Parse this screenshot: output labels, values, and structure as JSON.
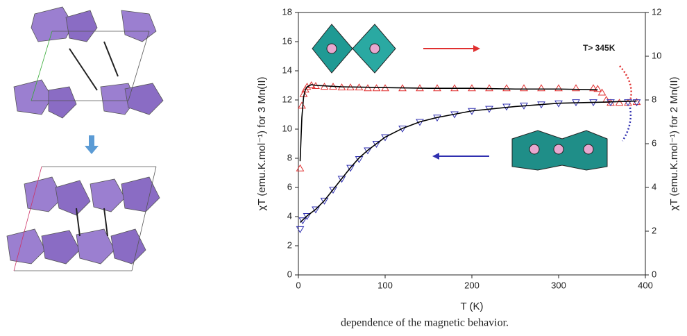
{
  "chart_data": {
    "type": "line",
    "x_label": "T (K)",
    "y_label": "χT (emu.K.mol⁻¹) for 3 Mn(II)",
    "y2_label": "χT (emu.K.mol⁻¹) for 2 Mn(II)",
    "annotation": "T> 345K",
    "caption": "dependence of the magnetic behavior.",
    "xlim": [
      0,
      400
    ],
    "xticks": [
      0,
      100,
      200,
      300,
      400
    ],
    "ylim": [
      0,
      18
    ],
    "yticks": [
      0,
      2,
      4,
      6,
      8,
      10,
      12,
      14,
      16,
      18
    ],
    "y2lim": [
      0,
      12
    ],
    "y2ticks": [
      0,
      2,
      4,
      6,
      8,
      10,
      12
    ],
    "series": [
      {
        "color": "#e03030",
        "marker": "triangle-up",
        "axis": "y",
        "x": [
          2,
          4,
          6,
          8,
          10,
          15,
          20,
          30,
          40,
          50,
          60,
          70,
          80,
          90,
          100,
          120,
          140,
          160,
          180,
          200,
          220,
          240,
          260,
          280,
          300,
          320,
          340,
          345,
          350,
          355,
          360,
          370,
          380,
          390
        ],
        "values": [
          7.3,
          11.6,
          12.4,
          12.7,
          12.9,
          13.0,
          12.95,
          12.9,
          12.9,
          12.85,
          12.85,
          12.85,
          12.8,
          12.8,
          12.8,
          12.8,
          12.8,
          12.8,
          12.8,
          12.8,
          12.8,
          12.8,
          12.8,
          12.8,
          12.8,
          12.8,
          12.8,
          12.75,
          12.5,
          12.0,
          11.8,
          11.8,
          11.8,
          11.85
        ]
      },
      {
        "color": "#3030b0",
        "marker": "triangle-down",
        "axis": "y2",
        "x": [
          2,
          5,
          10,
          20,
          30,
          40,
          50,
          60,
          70,
          80,
          90,
          100,
          120,
          140,
          160,
          180,
          200,
          220,
          240,
          260,
          280,
          300,
          320,
          340,
          360,
          380,
          390
        ],
        "values": [
          2.1,
          2.5,
          2.7,
          3.0,
          3.4,
          3.9,
          4.4,
          4.9,
          5.3,
          5.7,
          6.0,
          6.3,
          6.7,
          7.0,
          7.2,
          7.35,
          7.5,
          7.6,
          7.7,
          7.75,
          7.8,
          7.85,
          7.9,
          7.9,
          7.9,
          7.9,
          7.9
        ]
      },
      {
        "color": "#000000",
        "marker": "none",
        "axis": "y",
        "x": [
          2,
          4,
          6,
          8,
          10,
          15,
          20,
          50,
          100,
          150,
          200,
          250,
          300,
          345
        ],
        "values": [
          7.8,
          10.8,
          12.2,
          12.7,
          12.9,
          13.05,
          13.0,
          12.9,
          12.85,
          12.8,
          12.8,
          12.75,
          12.75,
          12.7
        ]
      },
      {
        "color": "#000000",
        "marker": "none",
        "axis": "y2",
        "x": [
          2,
          10,
          20,
          30,
          40,
          50,
          60,
          70,
          80,
          90,
          100,
          120,
          140,
          160,
          180,
          200,
          250,
          300,
          350,
          390
        ],
        "values": [
          2.4,
          2.7,
          3.0,
          3.4,
          3.9,
          4.4,
          4.9,
          5.35,
          5.7,
          6.0,
          6.3,
          6.7,
          7.0,
          7.2,
          7.35,
          7.5,
          7.7,
          7.85,
          7.9,
          7.95
        ]
      }
    ]
  }
}
